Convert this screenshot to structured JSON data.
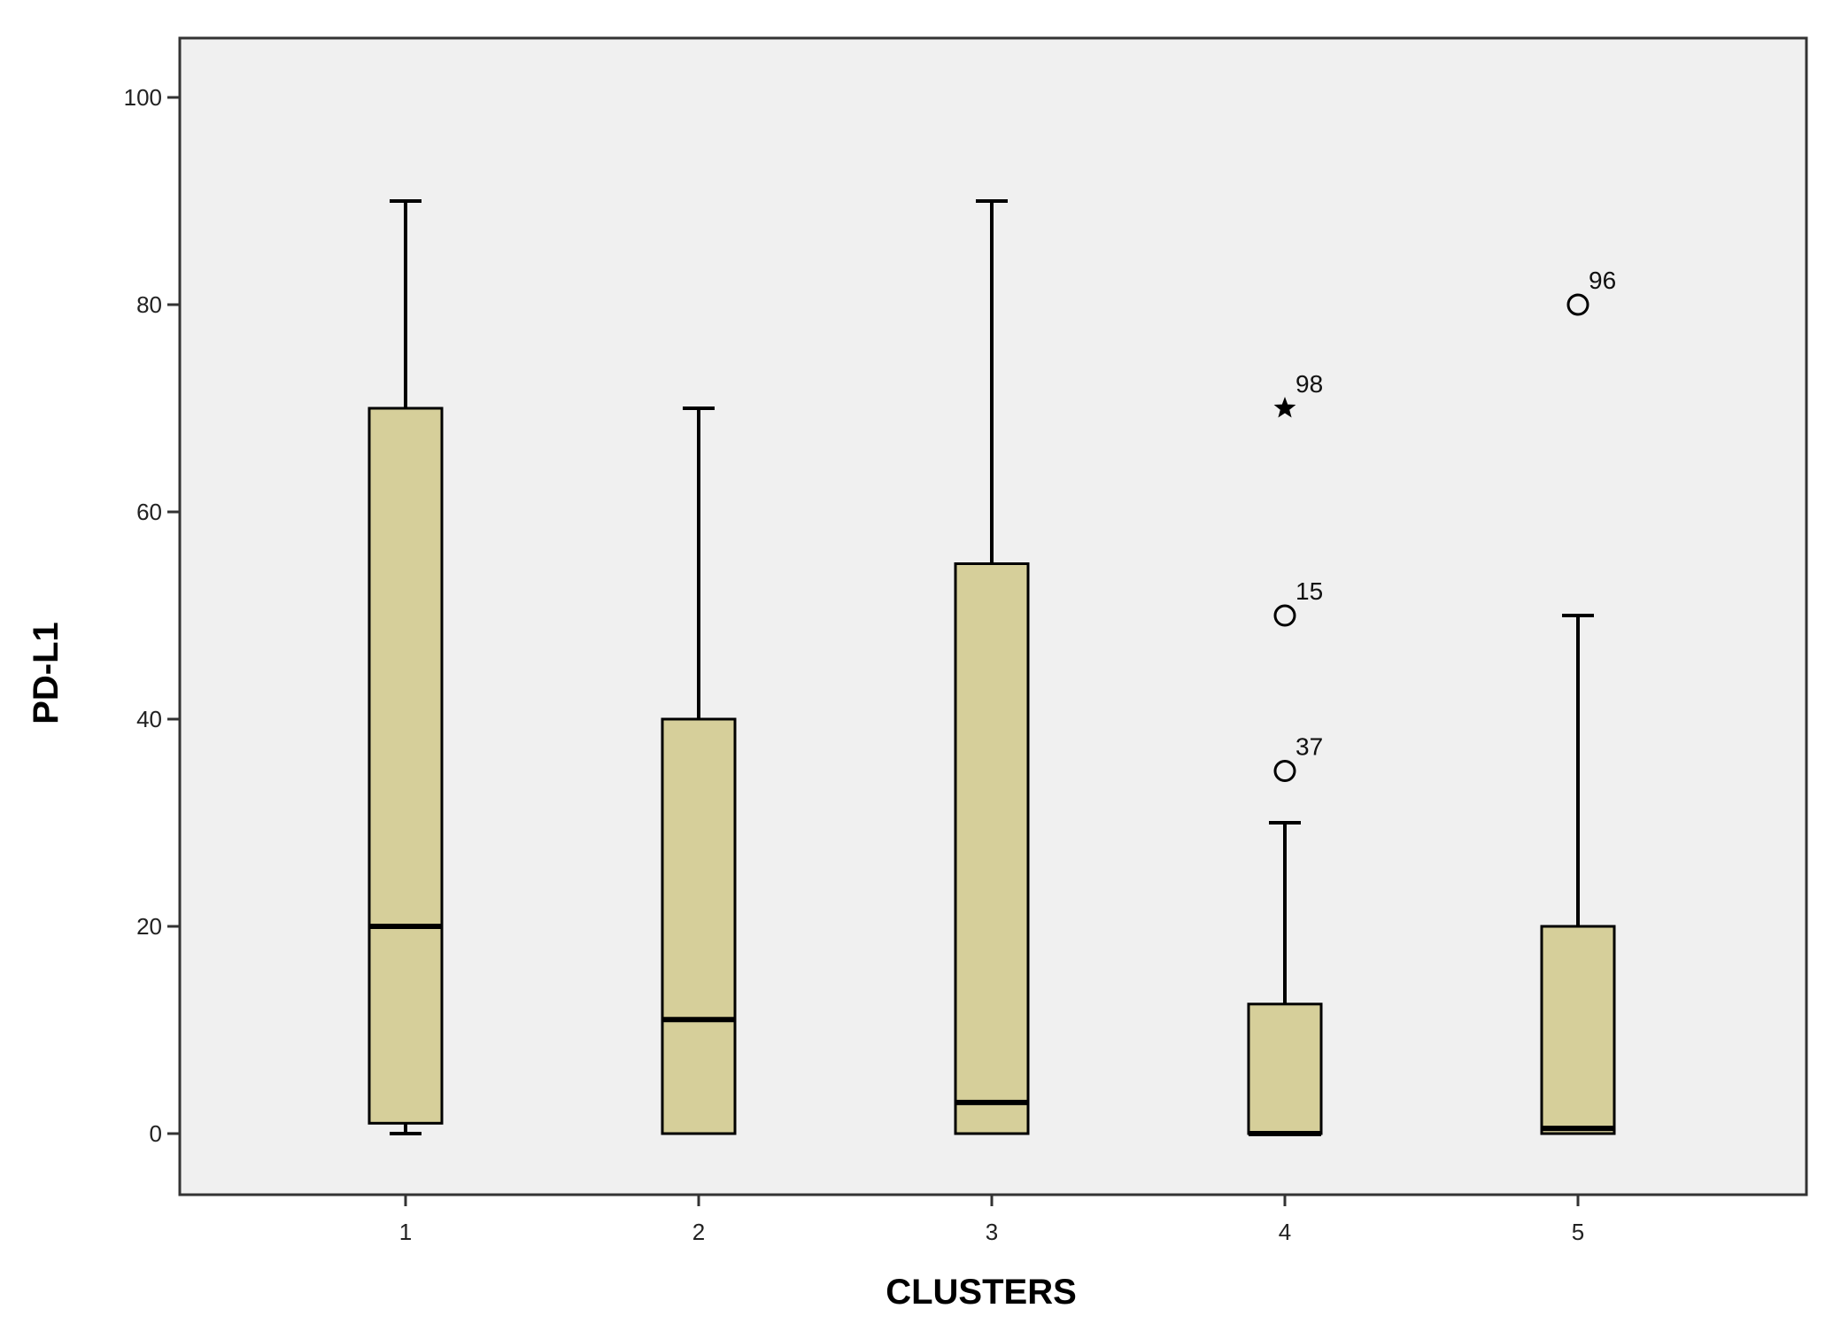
{
  "chart_data": {
    "type": "box",
    "title": "",
    "xlabel": "CLUSTERS",
    "ylabel": "PD-L1",
    "categories": [
      "1",
      "2",
      "3",
      "4",
      "5"
    ],
    "ylim": [
      -5,
      105
    ],
    "yticks": [
      0,
      20,
      40,
      60,
      80,
      100
    ],
    "grid": false,
    "colors": {
      "box_fill": "#d6cf9a",
      "plot_bg": "#f0f0f0"
    },
    "boxes": [
      {
        "category": "1",
        "whisker_low": 0,
        "q1": 1,
        "median": 20,
        "q3": 70,
        "whisker_high": 90
      },
      {
        "category": "2",
        "whisker_low": 0,
        "q1": 0,
        "median": 11,
        "q3": 40,
        "whisker_high": 70
      },
      {
        "category": "3",
        "whisker_low": 0,
        "q1": 0,
        "median": 3,
        "q3": 55,
        "whisker_high": 90
      },
      {
        "category": "4",
        "whisker_low": 0,
        "q1": 0,
        "median": 0,
        "q3": 12.5,
        "whisker_high": 30
      },
      {
        "category": "5",
        "whisker_low": 0,
        "q1": 0,
        "median": 0.5,
        "q3": 20,
        "whisker_high": 50
      }
    ],
    "outliers": [
      {
        "category": "4",
        "value": 70,
        "label": "98",
        "marker": "star"
      },
      {
        "category": "4",
        "value": 50,
        "label": "15",
        "marker": "circle"
      },
      {
        "category": "4",
        "value": 35,
        "label": "37",
        "marker": "circle"
      },
      {
        "category": "5",
        "value": 80,
        "label": "96",
        "marker": "circle"
      }
    ]
  }
}
